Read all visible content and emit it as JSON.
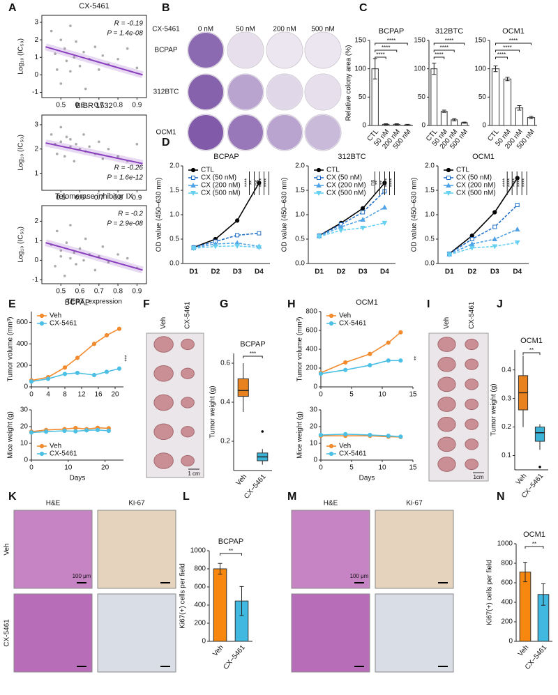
{
  "panel_labels": [
    "A",
    "B",
    "C",
    "D",
    "E",
    "F",
    "G",
    "H",
    "I",
    "J",
    "K",
    "L",
    "M",
    "N"
  ],
  "colony": {
    "drug": "CX-5461",
    "doses": [
      "0 nM",
      "50 nM",
      "200 nM",
      "500 nM"
    ],
    "cells": [
      "BCPAP",
      "312BTC",
      "OCM1"
    ]
  },
  "tumor_photos": [
    {
      "groups": [
        "Veh",
        "CX-5461"
      ],
      "scale": "1 cm"
    },
    {
      "groups": [
        "Veh",
        "CX-5461"
      ],
      "scale": "1cm"
    }
  ],
  "ihc": [
    {
      "stains": [
        "H&E",
        "Ki-67"
      ],
      "groups": [
        "Veh",
        "CX-5461"
      ],
      "scale": "100 μm"
    },
    {
      "stains": [
        "H&E",
        "Ki-67"
      ],
      "scale": "100 μm"
    }
  ],
  "chart_data": [
    {
      "type": "scatter",
      "title": "CX-5461",
      "ylabel": "Log₁₀ (IC₅₀)",
      "color": "#aaaaaa",
      "fit_color": "#8a3fbf",
      "frame": true,
      "x": [
        0.45,
        0.47,
        0.48,
        0.5,
        0.5,
        0.52,
        0.53,
        0.55,
        0.55,
        0.57,
        0.58,
        0.6,
        0.62,
        0.63,
        0.65,
        0.68,
        0.7,
        0.72,
        0.75,
        0.8,
        0.85,
        0.9
      ],
      "values": [
        2.5,
        1.2,
        0.3,
        2.0,
        -0.5,
        1.5,
        0.8,
        2.8,
        0.2,
        1.0,
        1.9,
        0.5,
        1.3,
        -0.8,
        0.9,
        1.6,
        0.3,
        1.1,
        0.6,
        0.9,
        1.5,
        0.4
      ],
      "fit": {
        "x": [
          0.42,
          0.93
        ],
        "values": [
          1.6,
          0.0
        ]
      },
      "annotations": [
        "R = -0.19",
        "P = 1.4e-08"
      ],
      "xlim": [
        0.4,
        0.95
      ],
      "xticks": [
        0.5,
        0.6,
        0.7,
        0.8,
        0.9
      ],
      "ylim": [
        -1.3,
        3.4
      ],
      "yticks": [
        -1,
        0,
        1,
        2,
        3
      ]
    },
    {
      "type": "scatter",
      "title": "BIBR 1532",
      "ylabel": "Log₁₀ (IC₅₀)",
      "color": "#aaaaaa",
      "fit_color": "#8a3fbf",
      "frame": true,
      "x": [
        0.45,
        0.47,
        0.48,
        0.5,
        0.5,
        0.52,
        0.53,
        0.55,
        0.55,
        0.57,
        0.58,
        0.6,
        0.62,
        0.63,
        0.65,
        0.68,
        0.7,
        0.72,
        0.75,
        0.8,
        0.85,
        0.9
      ],
      "values": [
        2.6,
        2.2,
        1.8,
        2.9,
        2.3,
        1.7,
        2.5,
        2.1,
        2.4,
        1.5,
        2.2,
        2.0,
        2.6,
        1.9,
        2.1,
        1.8,
        2.3,
        1.6,
        2.0,
        1.7,
        1.5,
        2.2
      ],
      "fit": {
        "x": [
          0.42,
          0.93
        ],
        "values": [
          2.25,
          1.4
        ]
      },
      "annotations": [
        "R = -0.26",
        "P = 1.6e-12"
      ],
      "xlim": [
        0.4,
        0.95
      ],
      "xticks": [
        0.5,
        0.6,
        0.7,
        0.8,
        0.9
      ],
      "ylim": [
        0.3,
        3.4
      ],
      "yticks": [
        1,
        2,
        3
      ]
    },
    {
      "type": "scatter",
      "title": "Telomerase inhibitor IX",
      "ylabel": "Log₁₀ (IC₅₀)",
      "xlabel": "TERT_expression",
      "color": "#aaaaaa",
      "fit_color": "#8a3fbf",
      "frame": true,
      "x": [
        0.45,
        0.47,
        0.48,
        0.5,
        0.5,
        0.52,
        0.53,
        0.55,
        0.55,
        0.57,
        0.58,
        0.6,
        0.62,
        0.63,
        0.65,
        0.68,
        0.7,
        0.72,
        0.75,
        0.8,
        0.85,
        0.9
      ],
      "values": [
        0.8,
        -0.3,
        1.5,
        0.2,
        0.5,
        -0.8,
        0.9,
        0.1,
        1.8,
        0.4,
        -0.2,
        0.6,
        0.0,
        1.1,
        0.3,
        -0.5,
        0.2,
        0.7,
        -0.1,
        0.3,
        0.1,
        -0.4
      ],
      "fit": {
        "x": [
          0.42,
          0.93
        ],
        "values": [
          0.9,
          -0.5
        ]
      },
      "annotations": [
        "R = -0.2",
        "P = 2.9e-08"
      ],
      "xlim": [
        0.4,
        0.95
      ],
      "xticks": [
        0.5,
        0.6,
        0.7,
        0.8,
        0.9
      ],
      "ylim": [
        -1.2,
        2.8
      ],
      "yticks": [
        -1,
        0,
        1,
        2
      ]
    },
    {
      "type": "bar",
      "title": "BCPAP",
      "ylabel": "Relative colony area (%)",
      "categories": [
        "CTL",
        "50 nM",
        "200 nM",
        "500 nM"
      ],
      "values": [
        100,
        2,
        2,
        1
      ],
      "errors": [
        18,
        1,
        1,
        1
      ],
      "colors": [
        "#ffffff",
        "#ffffff",
        "#ffffff",
        "#ffffff"
      ],
      "significance": [
        "****",
        "****",
        "****"
      ],
      "ylim": [
        0,
        150
      ],
      "yticks": [
        0,
        50,
        100,
        150
      ]
    },
    {
      "type": "bar",
      "title": "312BTC",
      "categories": [
        "CTL",
        "50 nM",
        "200 nM",
        "500 nM"
      ],
      "values": [
        100,
        25,
        10,
        5
      ],
      "errors": [
        10,
        2,
        2,
        1
      ],
      "colors": [
        "#ffffff",
        "#ffffff",
        "#ffffff",
        "#ffffff"
      ],
      "significance": [
        "****",
        "****",
        "****"
      ],
      "ylim": [
        0,
        150
      ],
      "yticks": [
        0,
        50,
        100,
        150
      ]
    },
    {
      "type": "bar",
      "title": "OCM1",
      "categories": [
        "CTL",
        "50 nM",
        "200 nM",
        "500 nM"
      ],
      "values": [
        100,
        82,
        31,
        14
      ],
      "errors": [
        5,
        3,
        4,
        2
      ],
      "colors": [
        "#ffffff",
        "#ffffff",
        "#ffffff",
        "#ffffff"
      ],
      "significance": [
        "****",
        "****",
        "****"
      ],
      "ylim": [
        0,
        150
      ],
      "yticks": [
        0,
        50,
        100,
        150
      ]
    },
    {
      "type": "line",
      "title": "BCPAP",
      "ylabel": "OD value (450–630 nm)",
      "categories": [
        "D1",
        "D2",
        "D3",
        "D4"
      ],
      "series": [
        {
          "name": "CTL",
          "color": "#000000",
          "marker": "circle",
          "dashed": false,
          "values": [
            0.33,
            0.5,
            0.88,
            1.65
          ]
        },
        {
          "name": "CX (50 nM)",
          "color": "#1f6fc9",
          "marker": "square",
          "dashed": true,
          "values": [
            0.33,
            0.45,
            0.58,
            0.62
          ]
        },
        {
          "name": "CX (200 nM)",
          "color": "#4fa3e6",
          "marker": "triangle",
          "dashed": true,
          "values": [
            0.32,
            0.4,
            0.42,
            0.35
          ]
        },
        {
          "name": "CX (500 nM)",
          "color": "#66d0f0",
          "marker": "triangle-down",
          "dashed": true,
          "values": [
            0.31,
            0.35,
            0.36,
            0.33
          ]
        }
      ],
      "significance": [
        "****",
        "**",
        "ns",
        "****",
        "****"
      ],
      "ylim": [
        0,
        2
      ],
      "yticks": [
        {
          "value": 0,
          "label": "0.0"
        },
        0.5,
        {
          "value": 1,
          "label": "1.0"
        },
        1.5,
        {
          "value": 2,
          "label": "2.0"
        }
      ]
    },
    {
      "type": "line",
      "title": "312BTC",
      "ylabel": "OD value (450–630 nm)",
      "categories": [
        "D1",
        "D2",
        "D3",
        "D4"
      ],
      "series": [
        {
          "name": "CTL",
          "color": "#000000",
          "marker": "circle",
          "dashed": false,
          "values": [
            0.57,
            0.83,
            1.13,
            1.65
          ]
        },
        {
          "name": "CX (50 nM)",
          "color": "#1f6fc9",
          "marker": "square",
          "dashed": true,
          "values": [
            0.57,
            0.8,
            1.05,
            1.48
          ]
        },
        {
          "name": "CX (200 nM)",
          "color": "#4fa3e6",
          "marker": "triangle",
          "dashed": true,
          "values": [
            0.56,
            0.75,
            0.9,
            1.15
          ]
        },
        {
          "name": "CX (500 nM)",
          "color": "#66d0f0",
          "marker": "triangle-down",
          "dashed": true,
          "values": [
            0.55,
            0.68,
            0.73,
            0.83
          ]
        }
      ],
      "significance": [
        "ns",
        "**",
        "**",
        "****",
        "****"
      ],
      "ylim": [
        0,
        2
      ],
      "yticks": [
        {
          "value": 0,
          "label": "0.0"
        },
        0.5,
        {
          "value": 1,
          "label": "1.0"
        },
        1.5,
        {
          "value": 2,
          "label": "2.0"
        }
      ]
    },
    {
      "type": "line",
      "title": "OCM1",
      "ylabel": "OD value (450–630 nm)",
      "categories": [
        "D1",
        "D2",
        "D3",
        "D4"
      ],
      "series": [
        {
          "name": "CTL",
          "color": "#000000",
          "marker": "circle",
          "dashed": false,
          "values": [
            0.2,
            0.57,
            1.05,
            1.75
          ]
        },
        {
          "name": "CX (50 nM)",
          "color": "#1f6fc9",
          "marker": "square",
          "dashed": true,
          "values": [
            0.2,
            0.5,
            0.75,
            1.2
          ]
        },
        {
          "name": "CX (200 nM)",
          "color": "#4fa3e6",
          "marker": "triangle",
          "dashed": true,
          "values": [
            0.19,
            0.4,
            0.5,
            0.7
          ]
        },
        {
          "name": "CX (500 nM)",
          "color": "#66d0f0",
          "marker": "triangle-down",
          "dashed": true,
          "values": [
            0.18,
            0.32,
            0.35,
            0.43
          ]
        }
      ],
      "significance": [
        "****",
        "****",
        "****",
        "****",
        "****"
      ],
      "ylim": [
        0,
        2
      ],
      "yticks": [
        {
          "value": 0,
          "label": "0.0"
        },
        0.5,
        {
          "value": 1,
          "label": "1.0"
        },
        1.5,
        {
          "value": 2,
          "label": "2.0"
        }
      ]
    },
    {
      "type": "line",
      "title": "BCPAP",
      "ylabel": "Tumor volume (mm³)",
      "x": [
        0,
        4,
        8,
        11,
        15,
        18,
        21
      ],
      "series": [
        {
          "name": "Veh",
          "color": "#f28a2e",
          "marker": "circle",
          "dashed": false,
          "values": [
            60,
            90,
            180,
            270,
            400,
            480,
            540
          ]
        },
        {
          "name": "CX-5461",
          "color": "#4cc0e4",
          "marker": "circle",
          "dashed": false,
          "values": [
            50,
            75,
            120,
            130,
            110,
            140,
            170
          ]
        }
      ],
      "significance": [
        "***"
      ],
      "xlim": [
        0,
        22
      ],
      "xticks": [
        0,
        4,
        8,
        12,
        16,
        20
      ],
      "ylim": [
        0,
        700
      ],
      "yticks": [
        0,
        200,
        400,
        600
      ]
    },
    {
      "type": "line",
      "ylabel": "Mice weight (g)",
      "xlabel": "Days",
      "x": [
        0,
        4,
        9,
        12,
        15,
        18,
        21
      ],
      "series": [
        {
          "name": "Veh",
          "color": "#f28a2e",
          "marker": "circle",
          "dashed": false,
          "values": [
            17,
            18,
            18.5,
            19.2,
            18.5,
            19.3,
            19
          ]
        },
        {
          "name": "CX-5461",
          "color": "#4cc0e4",
          "marker": "circle",
          "dashed": false,
          "values": [
            16.5,
            17,
            17.5,
            17.2,
            17.8,
            18,
            17.5
          ]
        }
      ],
      "xlim": [
        0,
        25
      ],
      "xticks": [
        0,
        10,
        20
      ],
      "ylim": [
        0,
        30
      ],
      "yticks": [
        0,
        10,
        20,
        30
      ]
    },
    {
      "type": "box",
      "title": "BCPAP",
      "ylabel": "Tumor weight (g)",
      "categories": [
        "Veh",
        "CX−5461"
      ],
      "colors": [
        "#e8821e",
        "#3bb3d6"
      ],
      "boxes": [
        {
          "min": 0.35,
          "q1": 0.43,
          "median": 0.46,
          "q3": 0.52,
          "max": 0.6
        },
        {
          "min": 0.08,
          "q1": 0.1,
          "median": 0.12,
          "q3": 0.14,
          "max": 0.16,
          "outliers": [
            0.25
          ]
        }
      ],
      "significance": [
        "***"
      ],
      "ylim": [
        0.05,
        0.65
      ],
      "yticks": [
        0.2,
        0.4,
        0.6
      ]
    },
    {
      "type": "line",
      "title": "OCM1",
      "ylabel": "Tumor volume (mm³)",
      "x": [
        0,
        4,
        8,
        11,
        13
      ],
      "series": [
        {
          "name": "Veh",
          "color": "#f28a2e",
          "marker": "circle",
          "dashed": false,
          "values": [
            150,
            260,
            350,
            470,
            580
          ]
        },
        {
          "name": "CX-5461",
          "color": "#4cc0e4",
          "marker": "circle",
          "dashed": false,
          "values": [
            140,
            180,
            230,
            280,
            280
          ]
        }
      ],
      "significance": [
        "**"
      ],
      "xlim": [
        0,
        15
      ],
      "xticks": [
        0,
        5,
        10,
        15
      ],
      "ylim": [
        0,
        800
      ],
      "yticks": [
        0,
        200,
        400,
        600,
        800
      ]
    },
    {
      "type": "line",
      "ylabel": "Mice weight (g)",
      "xlabel": "Days",
      "x": [
        0,
        4,
        8,
        11,
        13
      ],
      "series": [
        {
          "name": "Veh",
          "color": "#f28a2e",
          "marker": "circle",
          "dashed": false,
          "values": [
            14.5,
            14.5,
            14.5,
            14,
            13.8
          ]
        },
        {
          "name": "CX-5461",
          "color": "#4cc0e4",
          "marker": "circle",
          "dashed": false,
          "values": [
            15,
            15.5,
            15,
            14.5,
            14
          ]
        }
      ],
      "xlim": [
        0,
        15
      ],
      "xticks": [
        0,
        5,
        10,
        15
      ],
      "ylim": [
        0,
        30
      ],
      "yticks": [
        0,
        10,
        20,
        30
      ]
    },
    {
      "type": "box",
      "title": "OCM1",
      "ylabel": "Tumor weight (g)",
      "categories": [
        "Veh",
        "CX−5461"
      ],
      "colors": [
        "#e8821e",
        "#3bb3d6"
      ],
      "boxes": [
        {
          "min": 0.2,
          "q1": 0.26,
          "median": 0.32,
          "q3": 0.38,
          "max": 0.45
        },
        {
          "min": 0.12,
          "q1": 0.15,
          "median": 0.18,
          "q3": 0.2,
          "max": 0.21,
          "outliers": [
            0.06
          ]
        }
      ],
      "significance": [
        "**"
      ],
      "ylim": [
        0.05,
        0.47
      ],
      "yticks": [
        0.1,
        0.2,
        0.3,
        0.4
      ]
    },
    {
      "type": "bar",
      "title": "BCPAP",
      "ylabel": "Ki67(+) cells per field",
      "categories": [
        "Veh",
        "CX−5461"
      ],
      "values": [
        800,
        445
      ],
      "errors": [
        60,
        160
      ],
      "colors": [
        "#f7870f",
        "#40b8e0"
      ],
      "significance": [
        "**"
      ],
      "ylim": [
        0,
        1000
      ],
      "yticks": [
        0,
        200,
        400,
        600,
        800,
        1000
      ]
    },
    {
      "type": "bar",
      "title": "OCM1",
      "ylabel": "Ki67(+) cells per field",
      "categories": [
        "Veh",
        "CX−5461"
      ],
      "values": [
        710,
        480
      ],
      "errors": [
        100,
        110
      ],
      "colors": [
        "#f7870f",
        "#40b8e0"
      ],
      "significance": [
        "**"
      ],
      "ylim": [
        0,
        1000
      ],
      "yticks": [
        0,
        200,
        400,
        600,
        800,
        1000
      ]
    }
  ]
}
